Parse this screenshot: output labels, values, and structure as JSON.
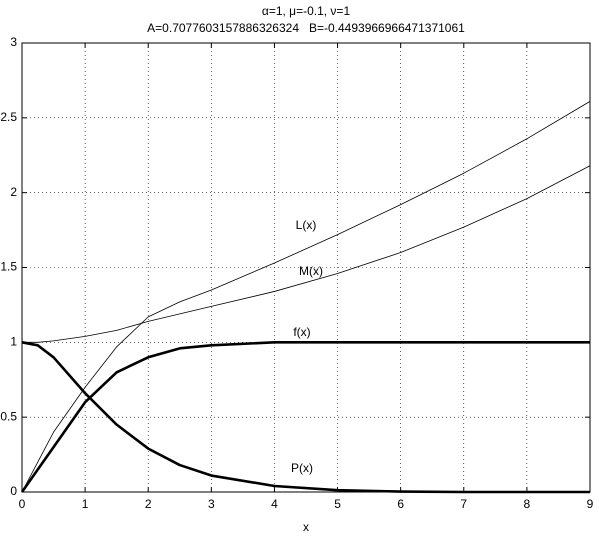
{
  "chart_data": {
    "type": "line",
    "title": "α=1, μ=-0.1, ν=1",
    "subtitle": "A=0.7077603157886326324   B=-0.4493966966471371061",
    "x_label": "x",
    "x": [
      0,
      0.25,
      0.5,
      1,
      1.5,
      2,
      2.5,
      3,
      4,
      5,
      6,
      7,
      8,
      9
    ],
    "series": [
      {
        "name": "L(x)",
        "color": "#000000",
        "line_width": 0.8,
        "values": [
          0,
          0.2,
          0.4,
          0.7,
          0.97,
          1.17,
          1.27,
          1.35,
          1.53,
          1.72,
          1.92,
          2.13,
          2.36,
          2.61
        ]
      },
      {
        "name": "M(x)",
        "color": "#000000",
        "line_width": 0.8,
        "values": [
          1,
          1,
          1.01,
          1.04,
          1.08,
          1.14,
          1.19,
          1.24,
          1.34,
          1.46,
          1.6,
          1.77,
          1.96,
          2.18
        ]
      },
      {
        "name": "f(x)",
        "color": "#000000",
        "line_width": 2.6,
        "values": [
          0,
          0.15,
          0.3,
          0.6,
          0.8,
          0.9,
          0.96,
          0.98,
          1,
          1,
          1,
          1,
          1,
          1
        ]
      },
      {
        "name": "P(x)",
        "color": "#000000",
        "line_width": 2.6,
        "values": [
          1,
          0.98,
          0.9,
          0.66,
          0.45,
          0.29,
          0.18,
          0.11,
          0.04,
          0.012,
          0.003,
          0,
          0,
          0
        ]
      }
    ],
    "xlim": [
      0,
      9
    ],
    "xticks": [
      0,
      1,
      2,
      3,
      4,
      5,
      6,
      7,
      8,
      9
    ],
    "ylim": [
      0,
      3
    ],
    "yticks": [
      0,
      0.5,
      1,
      1.5,
      2,
      2.5,
      3
    ],
    "grid": true
  }
}
